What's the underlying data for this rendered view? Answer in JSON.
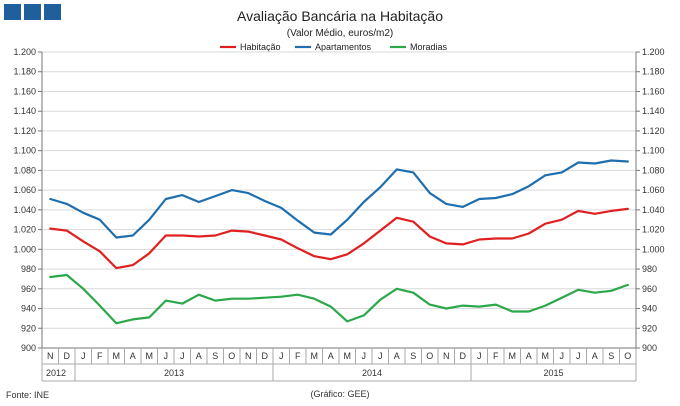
{
  "chart_data": {
    "type": "line",
    "title": "Avaliação Bancária na Habitação",
    "subtitle": "(Valor Médio, euros/m2)",
    "ylim": [
      900,
      1200
    ],
    "ytick_step": 20,
    "y_ticks": [
      "900",
      "920",
      "940",
      "960",
      "980",
      "1.000",
      "1.020",
      "1.040",
      "1.060",
      "1.080",
      "1.100",
      "1.120",
      "1.140",
      "1.160",
      "1.180",
      "1.200"
    ],
    "months": [
      "N",
      "D",
      "J",
      "F",
      "M",
      "A",
      "M",
      "J",
      "J",
      "A",
      "S",
      "O",
      "N",
      "D",
      "J",
      "F",
      "M",
      "A",
      "M",
      "J",
      "J",
      "A",
      "S",
      "O",
      "N",
      "D",
      "J",
      "F",
      "M",
      "A",
      "M",
      "J",
      "J",
      "A",
      "S",
      "O"
    ],
    "years": [
      {
        "label": "2012",
        "start": 0,
        "end": 2
      },
      {
        "label": "2013",
        "start": 2,
        "end": 14
      },
      {
        "label": "2014",
        "start": 14,
        "end": 26
      },
      {
        "label": "2015",
        "start": 26,
        "end": 36
      }
    ],
    "series": [
      {
        "name": "Habitação",
        "color": "#e02020",
        "values": [
          1021,
          1019,
          1008,
          998,
          981,
          984,
          996,
          1014,
          1014,
          1013,
          1014,
          1019,
          1018,
          1014,
          1010,
          1001,
          993,
          990,
          995,
          1006,
          1019,
          1032,
          1028,
          1013,
          1006,
          1005,
          1010,
          1011,
          1011,
          1016,
          1026,
          1030,
          1039,
          1036,
          1039,
          1041
        ]
      },
      {
        "name": "Apartamentos",
        "color": "#1f6faf",
        "values": [
          1051,
          1046,
          1037,
          1030,
          1012,
          1014,
          1030,
          1051,
          1055,
          1048,
          1054,
          1060,
          1057,
          1049,
          1042,
          1029,
          1017,
          1015,
          1030,
          1048,
          1063,
          1081,
          1078,
          1057,
          1046,
          1043,
          1051,
          1052,
          1056,
          1064,
          1075,
          1078,
          1088,
          1087,
          1090,
          1089
        ]
      },
      {
        "name": "Moradias",
        "color": "#2aa84a",
        "values": [
          972,
          974,
          960,
          943,
          925,
          929,
          931,
          948,
          945,
          954,
          948,
          950,
          950,
          951,
          952,
          954,
          950,
          942,
          927,
          933,
          949,
          960,
          956,
          944,
          940,
          943,
          942,
          944,
          937,
          937,
          943,
          951,
          959,
          956,
          958,
          964
        ]
      }
    ],
    "source": "Fonte: INE",
    "credit": "(Gráfico: GEE)"
  }
}
